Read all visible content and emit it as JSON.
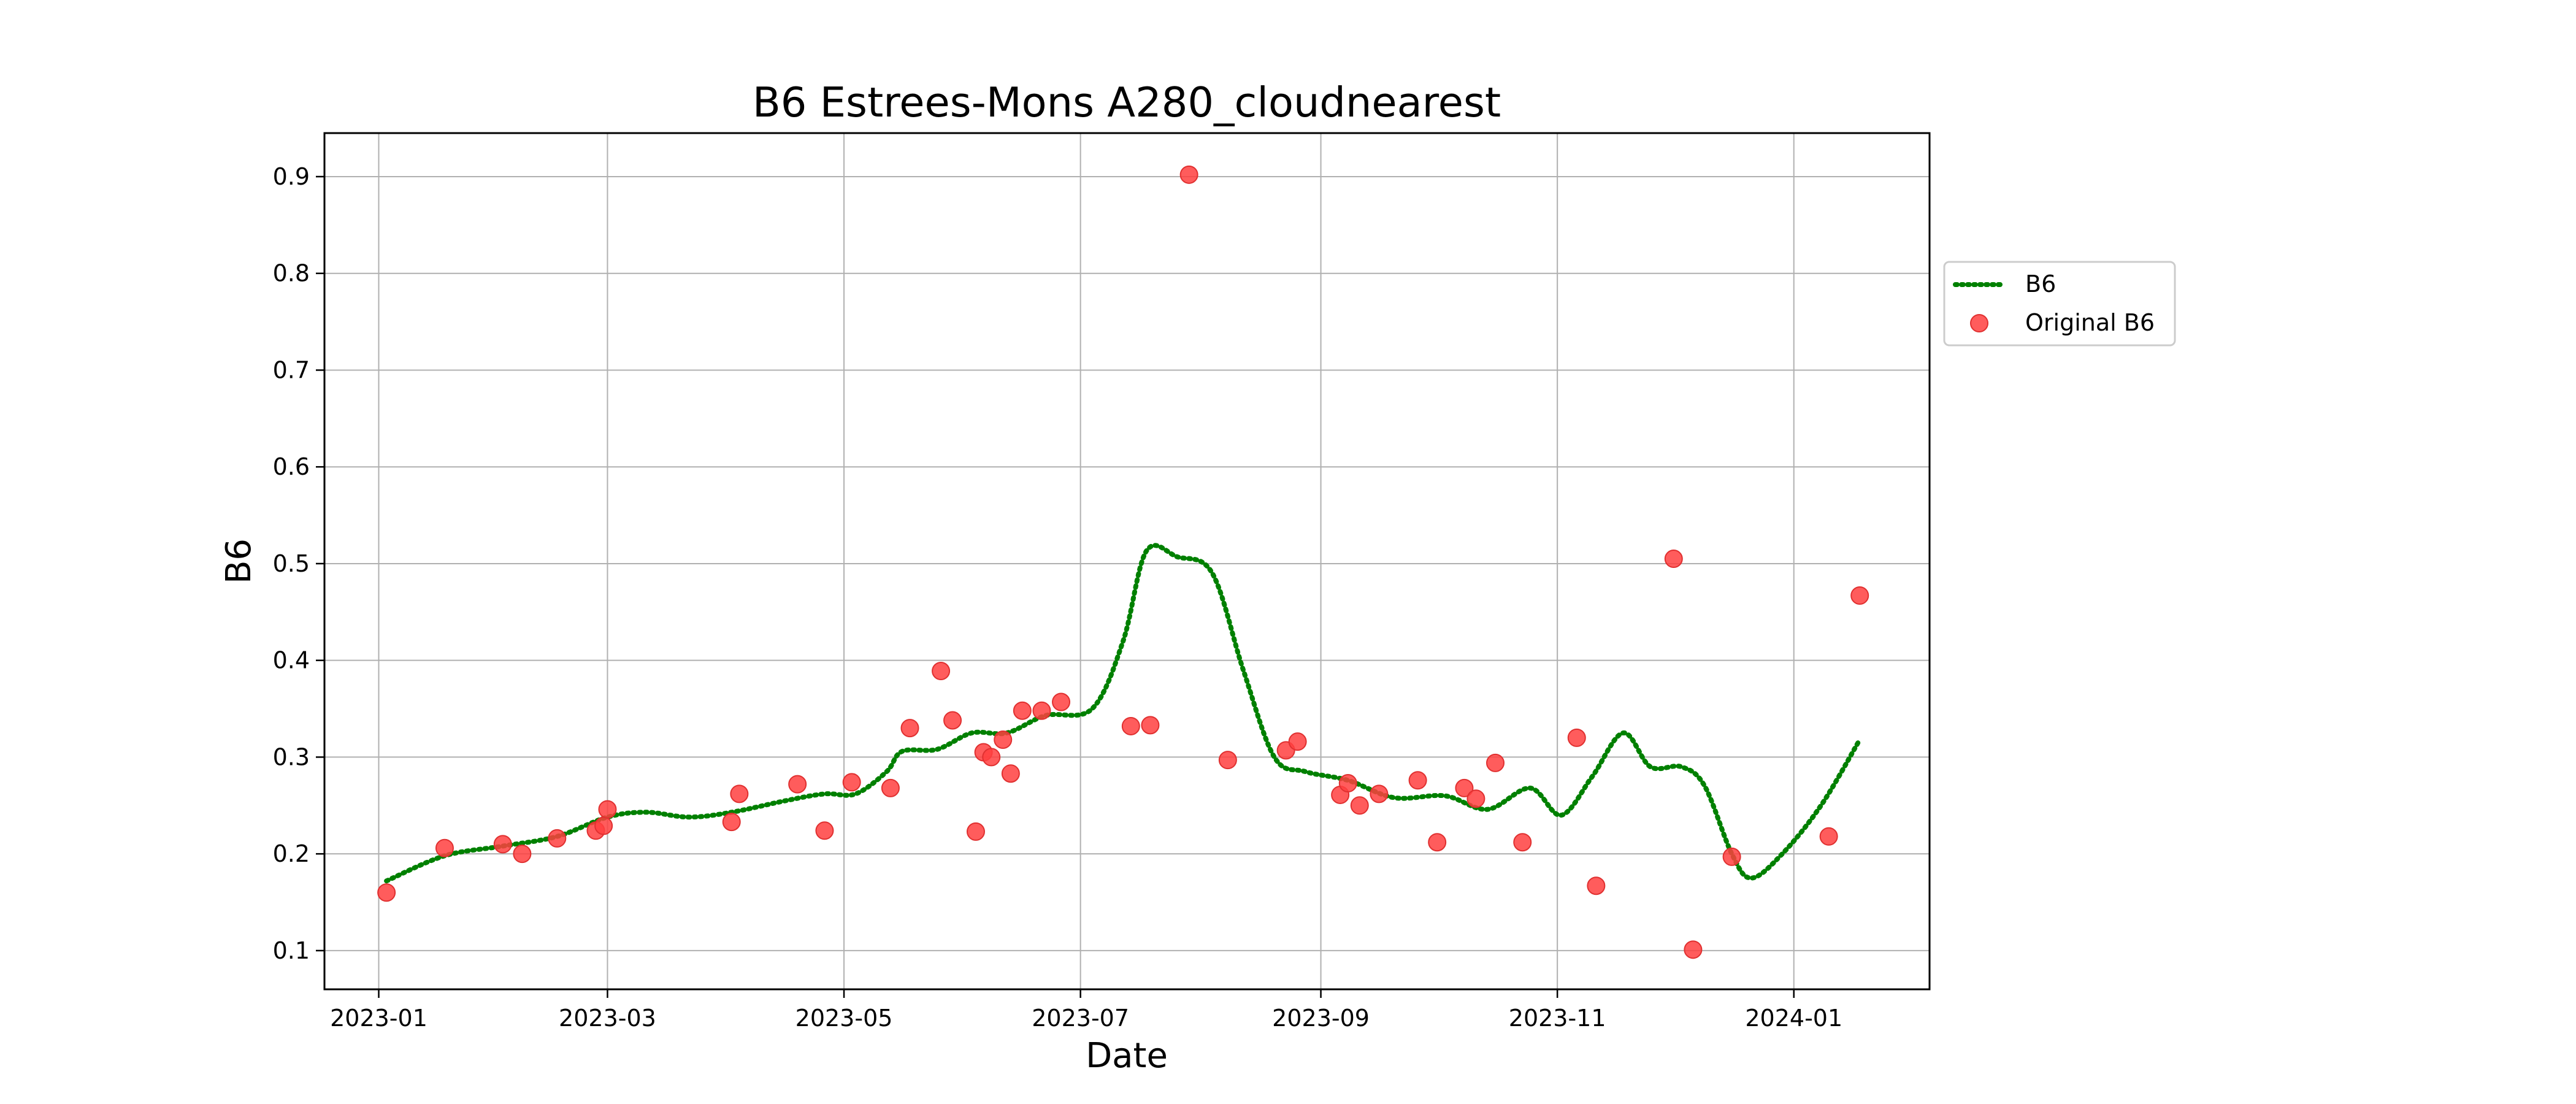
{
  "chart_data": {
    "type": "line",
    "title": "B6 Estrees-Mons A280_cloudnearest",
    "xlabel": "Date",
    "ylabel": "B6",
    "x_type": "date",
    "xlim": [
      "2022-12-18",
      "2024-02-05"
    ],
    "ylim": [
      0.06,
      0.945
    ],
    "x_ticks": [
      "2023-01-01",
      "2023-03-01",
      "2023-05-01",
      "2023-07-01",
      "2023-09-01",
      "2023-11-01",
      "2024-01-01"
    ],
    "x_tick_labels": [
      "2023-01",
      "2023-03",
      "2023-05",
      "2023-07",
      "2023-09",
      "2023-11",
      "2024-01"
    ],
    "y_ticks": [
      0.1,
      0.2,
      0.3,
      0.4,
      0.5,
      0.6,
      0.7,
      0.8,
      0.9
    ],
    "y_tick_labels": [
      "0.1",
      "0.2",
      "0.3",
      "0.4",
      "0.5",
      "0.6",
      "0.7",
      "0.8",
      "0.9"
    ],
    "grid": true,
    "legend_position": "outside-right",
    "series": [
      {
        "name": "B6",
        "style": "dotted-line",
        "color": "#008000",
        "points": [
          [
            "2023-01-03",
            0.172
          ],
          [
            "2023-01-18",
            0.198
          ],
          [
            "2023-02-02",
            0.208
          ],
          [
            "2023-02-16",
            0.218
          ],
          [
            "2023-03-01",
            0.238
          ],
          [
            "2023-03-11",
            0.243
          ],
          [
            "2023-03-22",
            0.238
          ],
          [
            "2023-04-02",
            0.243
          ],
          [
            "2023-04-16",
            0.255
          ],
          [
            "2023-04-26",
            0.262
          ],
          [
            "2023-05-04",
            0.262
          ],
          [
            "2023-05-12",
            0.285
          ],
          [
            "2023-05-16",
            0.306
          ],
          [
            "2023-05-25",
            0.308
          ],
          [
            "2023-06-03",
            0.325
          ],
          [
            "2023-06-12",
            0.325
          ],
          [
            "2023-06-22",
            0.343
          ],
          [
            "2023-07-04",
            0.35
          ],
          [
            "2023-07-12",
            0.42
          ],
          [
            "2023-07-18",
            0.513
          ],
          [
            "2023-07-26",
            0.507
          ],
          [
            "2023-08-04",
            0.49
          ],
          [
            "2023-08-12",
            0.39
          ],
          [
            "2023-08-20",
            0.3
          ],
          [
            "2023-08-28",
            0.285
          ],
          [
            "2023-09-08",
            0.276
          ],
          [
            "2023-09-20",
            0.258
          ],
          [
            "2023-10-03",
            0.26
          ],
          [
            "2023-10-14",
            0.246
          ],
          [
            "2023-10-25",
            0.268
          ],
          [
            "2023-11-02",
            0.24
          ],
          [
            "2023-11-10",
            0.28
          ],
          [
            "2023-11-18",
            0.325
          ],
          [
            "2023-11-25",
            0.29
          ],
          [
            "2023-12-03",
            0.29
          ],
          [
            "2023-12-09",
            0.27
          ],
          [
            "2023-12-16",
            0.2
          ],
          [
            "2023-12-21",
            0.175
          ],
          [
            "2023-12-29",
            0.2
          ],
          [
            "2024-01-08",
            0.25
          ],
          [
            "2024-01-18",
            0.318
          ]
        ]
      },
      {
        "name": "Original B6",
        "style": "scatter",
        "color": "#ff4040",
        "points": [
          [
            "2023-01-03",
            0.16
          ],
          [
            "2023-01-18",
            0.206
          ],
          [
            "2023-02-02",
            0.21
          ],
          [
            "2023-02-07",
            0.2
          ],
          [
            "2023-02-16",
            0.216
          ],
          [
            "2023-02-26",
            0.224
          ],
          [
            "2023-02-28",
            0.229
          ],
          [
            "2023-03-01",
            0.246
          ],
          [
            "2023-04-02",
            0.233
          ],
          [
            "2023-04-04",
            0.262
          ],
          [
            "2023-04-19",
            0.272
          ],
          [
            "2023-04-26",
            0.224
          ],
          [
            "2023-05-03",
            0.274
          ],
          [
            "2023-05-13",
            0.268
          ],
          [
            "2023-05-18",
            0.33
          ],
          [
            "2023-05-26",
            0.389
          ],
          [
            "2023-05-29",
            0.338
          ],
          [
            "2023-06-04",
            0.223
          ],
          [
            "2023-06-06",
            0.305
          ],
          [
            "2023-06-08",
            0.3
          ],
          [
            "2023-06-11",
            0.318
          ],
          [
            "2023-06-13",
            0.283
          ],
          [
            "2023-06-16",
            0.348
          ],
          [
            "2023-06-21",
            0.348
          ],
          [
            "2023-06-26",
            0.357
          ],
          [
            "2023-07-14",
            0.332
          ],
          [
            "2023-07-19",
            0.333
          ],
          [
            "2023-07-29",
            0.902
          ],
          [
            "2023-08-08",
            0.297
          ],
          [
            "2023-08-23",
            0.307
          ],
          [
            "2023-08-26",
            0.316
          ],
          [
            "2023-09-06",
            0.261
          ],
          [
            "2023-09-08",
            0.273
          ],
          [
            "2023-09-11",
            0.25
          ],
          [
            "2023-09-16",
            0.262
          ],
          [
            "2023-09-26",
            0.276
          ],
          [
            "2023-10-01",
            0.212
          ],
          [
            "2023-10-08",
            0.268
          ],
          [
            "2023-10-11",
            0.257
          ],
          [
            "2023-10-16",
            0.294
          ],
          [
            "2023-10-23",
            0.212
          ],
          [
            "2023-11-06",
            0.32
          ],
          [
            "2023-11-11",
            0.167
          ],
          [
            "2023-12-01",
            0.505
          ],
          [
            "2023-12-06",
            0.101
          ],
          [
            "2023-12-16",
            0.197
          ],
          [
            "2024-01-10",
            0.218
          ],
          [
            "2024-01-18",
            0.467
          ]
        ]
      }
    ]
  }
}
